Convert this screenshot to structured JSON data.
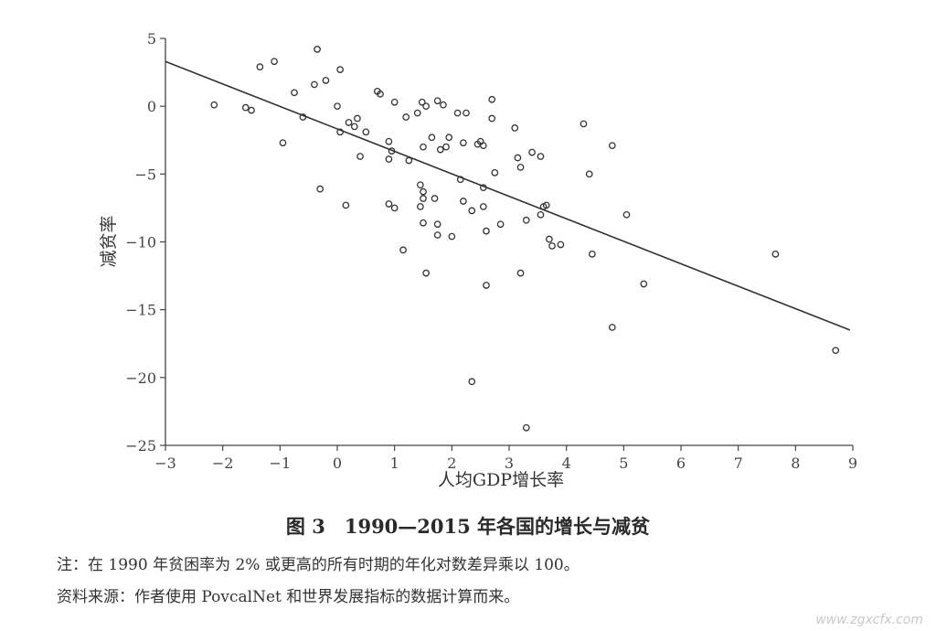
{
  "chart_data": {
    "type": "scatter",
    "xlabel": "人均GDP增长率",
    "ylabel": "减贫率",
    "xlim": [
      -3,
      9
    ],
    "ylim": [
      -25,
      5
    ],
    "xticks": [
      -3,
      -2,
      -1,
      0,
      1,
      2,
      3,
      4,
      5,
      6,
      7,
      8,
      9
    ],
    "yticks": [
      5,
      0,
      -5,
      -10,
      -15,
      -20,
      -25
    ],
    "trendline": {
      "x": [
        -3,
        8.95
      ],
      "y": [
        3.3,
        -16.5
      ]
    },
    "points": [
      [
        -2.15,
        0.1
      ],
      [
        -1.6,
        -0.1
      ],
      [
        -1.5,
        -0.3
      ],
      [
        -1.35,
        2.9
      ],
      [
        -1.1,
        3.3
      ],
      [
        -0.95,
        -2.7
      ],
      [
        -0.75,
        1.0
      ],
      [
        -0.6,
        -0.8
      ],
      [
        -0.4,
        1.6
      ],
      [
        -0.35,
        4.2
      ],
      [
        -0.3,
        -6.1
      ],
      [
        -0.2,
        1.9
      ],
      [
        0.0,
        0.0
      ],
      [
        0.05,
        2.7
      ],
      [
        0.05,
        -1.9
      ],
      [
        0.15,
        -7.3
      ],
      [
        0.2,
        -1.2
      ],
      [
        0.3,
        -1.5
      ],
      [
        0.35,
        -0.9
      ],
      [
        0.4,
        -3.7
      ],
      [
        0.5,
        -1.9
      ],
      [
        0.7,
        1.1
      ],
      [
        0.75,
        0.9
      ],
      [
        0.9,
        -2.6
      ],
      [
        0.9,
        -3.9
      ],
      [
        0.9,
        -7.2
      ],
      [
        0.95,
        -3.3
      ],
      [
        1.0,
        0.3
      ],
      [
        1.0,
        -7.5
      ],
      [
        1.15,
        -10.6
      ],
      [
        1.2,
        -0.8
      ],
      [
        1.25,
        -4.0
      ],
      [
        1.4,
        -0.5
      ],
      [
        1.45,
        -7.4
      ],
      [
        1.45,
        -5.8
      ],
      [
        1.48,
        0.3
      ],
      [
        1.5,
        -3.0
      ],
      [
        1.5,
        -6.3
      ],
      [
        1.5,
        -6.8
      ],
      [
        1.5,
        -8.6
      ],
      [
        1.55,
        -12.3
      ],
      [
        1.55,
        0.0
      ],
      [
        1.65,
        -2.3
      ],
      [
        1.7,
        -6.8
      ],
      [
        1.75,
        -8.7
      ],
      [
        1.75,
        -9.5
      ],
      [
        1.75,
        0.4
      ],
      [
        1.8,
        -3.2
      ],
      [
        1.85,
        0.1
      ],
      [
        1.9,
        -3.0
      ],
      [
        1.95,
        -2.3
      ],
      [
        2.0,
        -9.6
      ],
      [
        2.1,
        -0.5
      ],
      [
        2.15,
        -5.4
      ],
      [
        2.2,
        -2.7
      ],
      [
        2.2,
        -7.0
      ],
      [
        2.25,
        -0.5
      ],
      [
        2.35,
        -20.3
      ],
      [
        2.35,
        -7.7
      ],
      [
        2.45,
        -2.8
      ],
      [
        2.5,
        -2.6
      ],
      [
        2.55,
        -2.9
      ],
      [
        2.55,
        -6.0
      ],
      [
        2.55,
        -7.4
      ],
      [
        2.6,
        -13.2
      ],
      [
        2.6,
        -9.2
      ],
      [
        2.7,
        0.5
      ],
      [
        2.7,
        -0.9
      ],
      [
        2.75,
        -4.9
      ],
      [
        2.85,
        -8.7
      ],
      [
        3.1,
        -1.6
      ],
      [
        3.15,
        -3.8
      ],
      [
        3.2,
        -4.5
      ],
      [
        3.2,
        -12.3
      ],
      [
        3.3,
        -8.4
      ],
      [
        3.3,
        -23.7
      ],
      [
        3.4,
        -3.4
      ],
      [
        3.55,
        -8.0
      ],
      [
        3.55,
        -3.7
      ],
      [
        3.6,
        -7.4
      ],
      [
        3.65,
        -7.3
      ],
      [
        3.7,
        -9.8
      ],
      [
        3.75,
        -10.3
      ],
      [
        3.9,
        -10.2
      ],
      [
        4.3,
        -1.3
      ],
      [
        4.4,
        -5.0
      ],
      [
        4.45,
        -10.9
      ],
      [
        4.8,
        -16.3
      ],
      [
        4.8,
        -2.9
      ],
      [
        5.05,
        -8.0
      ],
      [
        5.35,
        -13.1
      ],
      [
        7.65,
        -10.9
      ],
      [
        8.7,
        -18.0
      ]
    ]
  },
  "caption": "图 3　1990—2015 年各国的增长与减贫",
  "notes": {
    "note1": "注：在 1990 年贫困率为 2% 或更高的所有时期的年化对数差异乘以 100。",
    "note2": "资料来源：作者使用 PovcalNet 和世界发展指标的数据计算而来。"
  },
  "watermark": "www.zgxcfx.com"
}
